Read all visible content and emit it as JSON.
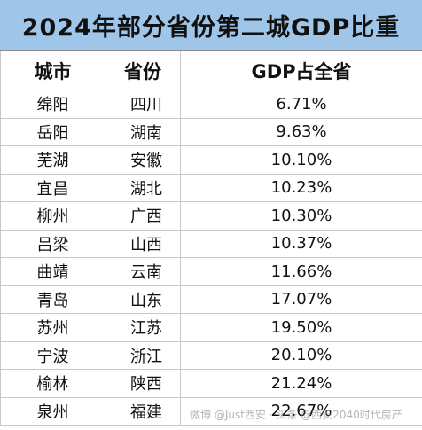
{
  "title": "2024年部分省份第二城GDP比重",
  "headers": {
    "city": "城市",
    "province": "省份",
    "share": "GDP占全省"
  },
  "rows": [
    {
      "city": "绵阳",
      "province": "四川",
      "share": "6.71%"
    },
    {
      "city": "岳阳",
      "province": "湖南",
      "share": "9.63%"
    },
    {
      "city": "芜湖",
      "province": "安徽",
      "share": "10.10%"
    },
    {
      "city": "宜昌",
      "province": "湖北",
      "share": "10.23%"
    },
    {
      "city": "柳州",
      "province": "广西",
      "share": "10.30%"
    },
    {
      "city": "吕梁",
      "province": "山西",
      "share": "10.37%"
    },
    {
      "city": "曲靖",
      "province": "云南",
      "share": "11.66%"
    },
    {
      "city": "青岛",
      "province": "山东",
      "share": "17.07%"
    },
    {
      "city": "苏州",
      "province": "江苏",
      "share": "19.50%"
    },
    {
      "city": "宁波",
      "province": "浙江",
      "share": "20.10%"
    },
    {
      "city": "榆林",
      "province": "陕西",
      "share": "21.24%"
    },
    {
      "city": "泉州",
      "province": "福建",
      "share": "22.67%"
    }
  ],
  "watermark": "微博 @Just西安 · 头条 @西安2040时代房产"
}
